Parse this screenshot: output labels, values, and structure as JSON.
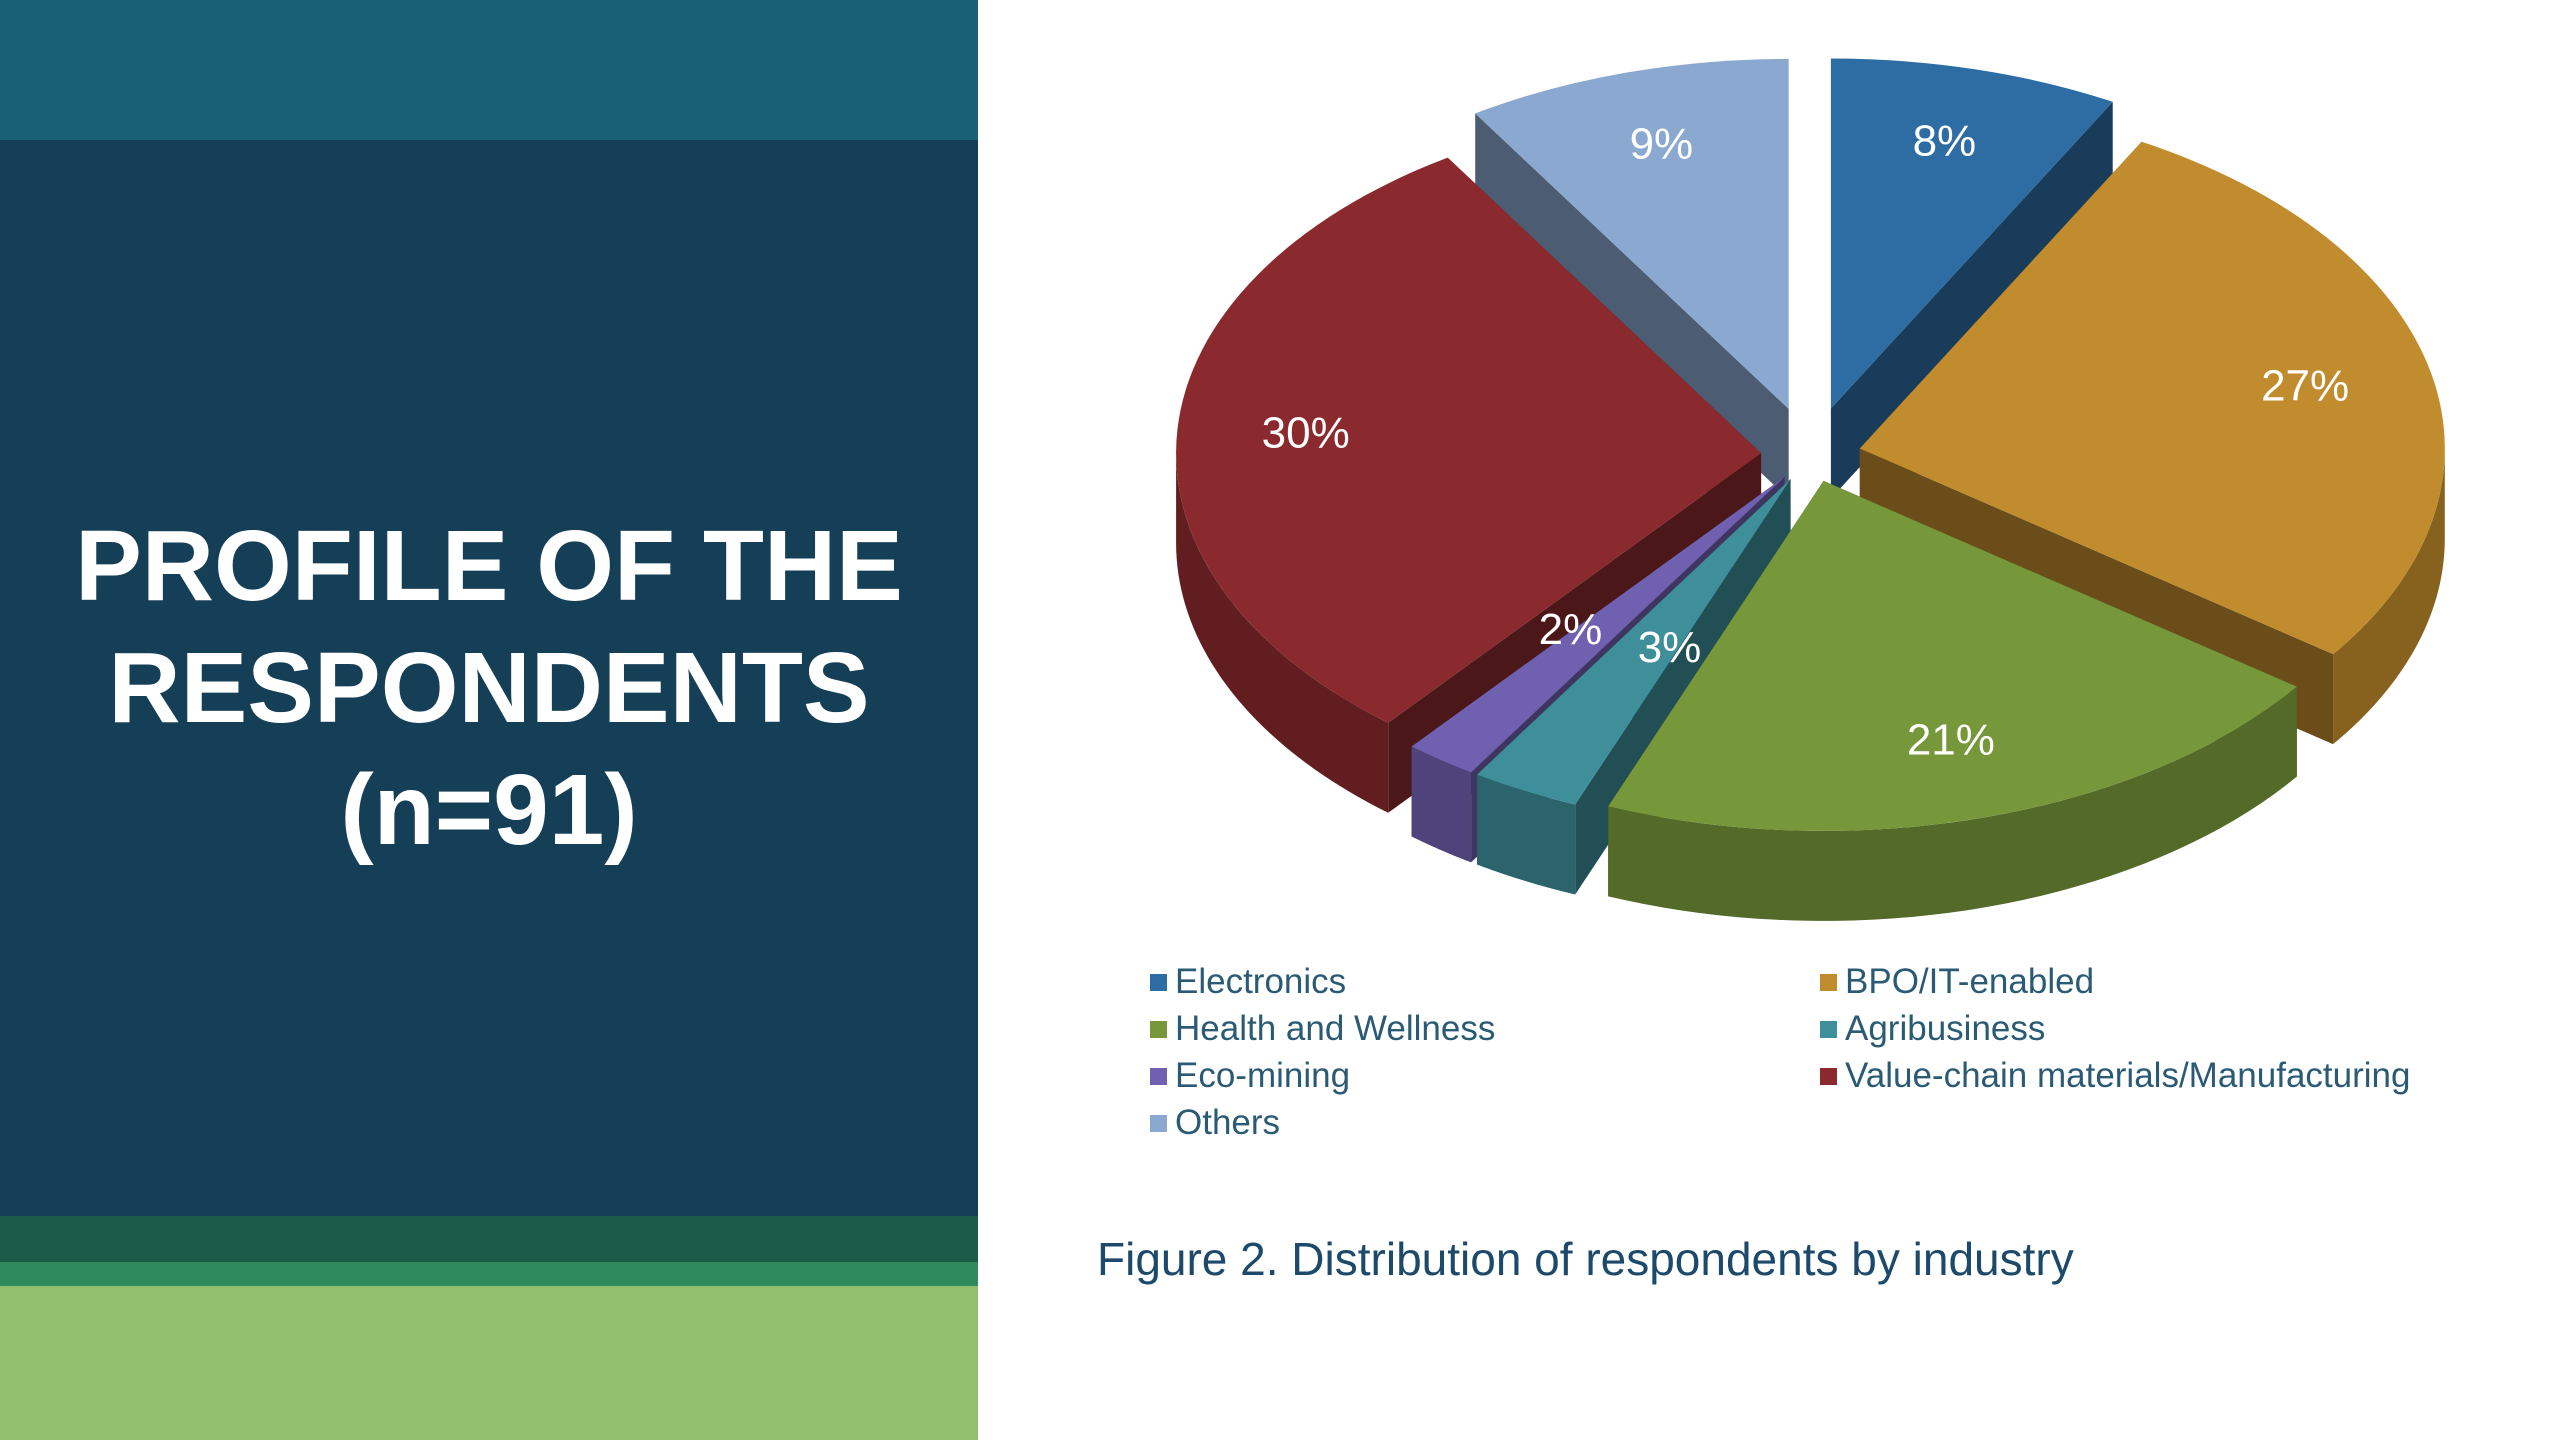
{
  "slide": {
    "title_lines": [
      "PROFILE OF THE",
      "RESPONDENTS",
      "(n=91)"
    ]
  },
  "theme": {
    "band_top": "#196077",
    "band_main": "#153f56",
    "band_dark": "#1c5a4a",
    "band_mid": "#2e8a5a",
    "band_bottom": "#92bf6e"
  },
  "chart_data": {
    "type": "pie",
    "style": "3d-exploded",
    "legend_position": "bottom",
    "categories": [
      "Electronics",
      "BPO/IT-enabled",
      "Health and Wellness",
      "Agribusiness",
      "Eco-mining",
      "Value-chain materials/Manufacturing",
      "Others"
    ],
    "values": [
      8,
      27,
      21,
      3,
      2,
      30,
      9
    ],
    "labels": [
      "8%",
      "27%",
      "21%",
      "3%",
      "2%",
      "30%",
      "9%"
    ],
    "colors": [
      "#2e6da4",
      "#c18c2d",
      "#76973a",
      "#3e8f9a",
      "#7060b0",
      "#8b2a2e",
      "#8aa8d0"
    ]
  },
  "caption": "Figure 2. Distribution of respondents by industry"
}
